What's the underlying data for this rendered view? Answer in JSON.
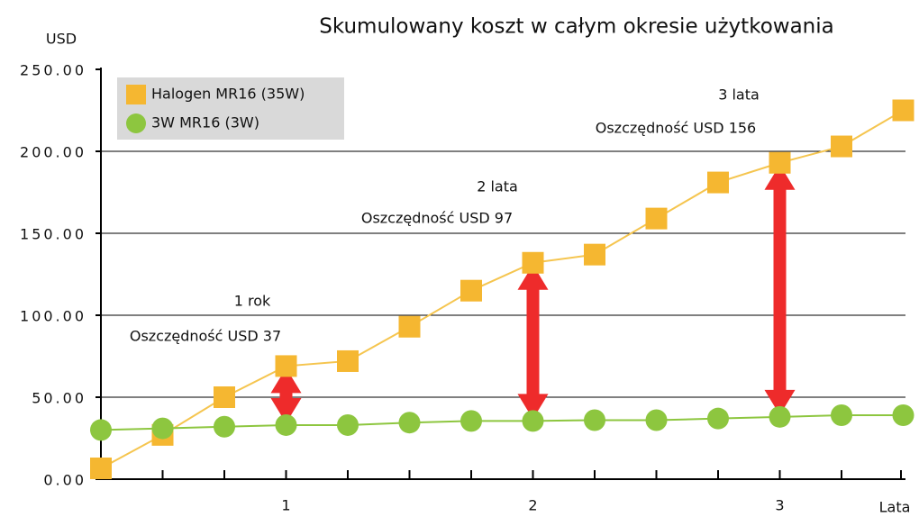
{
  "chart_data": {
    "type": "line",
    "title": "Skumulowany koszt w całym okresie użytkowania",
    "y_label": "USD",
    "x_label": "Lata",
    "categories": [
      null,
      null,
      null,
      "1",
      null,
      null,
      null,
      "2",
      null,
      null,
      null,
      "3",
      null,
      null
    ],
    "series": [
      {
        "name": "Halogen MR16 (35W)",
        "color": "#f5b731",
        "line_color": "#f5c54f",
        "marker": "square",
        "values": [
          6.6,
          27,
          50,
          69,
          72,
          93,
          115,
          132,
          137,
          159,
          181,
          193,
          203,
          225
        ]
      },
      {
        "name": "3W MR16 (3W)",
        "color": "#8dc63f",
        "line_color": "#8dc63f",
        "marker": "circle",
        "values": [
          30,
          31,
          32,
          33,
          33,
          34.5,
          35.5,
          35.5,
          36,
          36,
          37,
          38,
          39,
          39
        ]
      }
    ],
    "ylim": [
      0,
      250
    ],
    "yticks": [
      {
        "value": 0,
        "label": "0.00"
      },
      {
        "value": 50,
        "label": "50.00"
      },
      {
        "value": 100,
        "label": "100.00"
      },
      {
        "value": 150,
        "label": "150.00"
      },
      {
        "value": 200,
        "label": "200.00"
      },
      {
        "value": 250,
        "label": "250.00"
      }
    ],
    "grid": true,
    "legend": "top-left",
    "annotations": [
      {
        "category": "1",
        "title": "1 rok",
        "text": "Oszczędność USD 37"
      },
      {
        "category": "2",
        "title": "2 lata",
        "text": "Oszczędność USD 97"
      },
      {
        "category": "3",
        "title": "3 lata",
        "text": "Oszczędność USD 156"
      }
    ],
    "arrow_color": "#ee2b2b"
  }
}
